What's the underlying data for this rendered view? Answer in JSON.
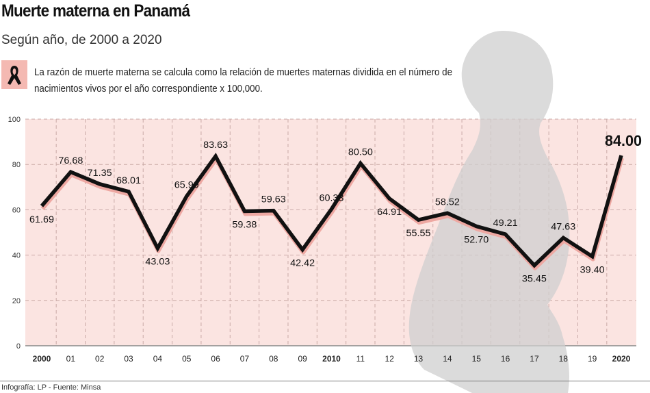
{
  "header": {
    "title": "Muerte materna en Panamá",
    "subtitle": "Según año, de 2000 a 2020",
    "note": "La razón de muerte materna se calcula como la relación de muertes maternas dividida en el número de nacimientos vivos por el año correspondiente x 100,000.",
    "note_icon": "awareness-ribbon-icon"
  },
  "footer": "Infografía: LP - Fuente: Minsa",
  "colors": {
    "plot_bg": "#fbe4e1",
    "line": "#111111",
    "shadow": "#eea8a2",
    "silhouette": "#cfcfcf"
  },
  "chart_data": {
    "type": "line",
    "categories": [
      "2000",
      "01",
      "02",
      "03",
      "04",
      "05",
      "06",
      "07",
      "08",
      "09",
      "2010",
      "11",
      "12",
      "13",
      "14",
      "15",
      "16",
      "17",
      "18",
      "19",
      "2020"
    ],
    "bold_categories": [
      "2000",
      "2010",
      "2020"
    ],
    "values": [
      61.69,
      76.68,
      71.35,
      68.01,
      43.03,
      65.99,
      83.63,
      59.38,
      59.63,
      42.42,
      60.33,
      80.5,
      64.91,
      55.55,
      58.52,
      52.7,
      49.21,
      35.45,
      47.63,
      39.4,
      84.0
    ],
    "labels": [
      "61.69",
      "76.68",
      "71.35",
      "68.01",
      "43.03",
      "65.99",
      "83.63",
      "59.38",
      "59.63",
      "42.42",
      "60.33",
      "80.50",
      "64.91",
      "55.55",
      "58.52",
      "52.70",
      "49.21",
      "35.45",
      "47.63",
      "39.40",
      "84.00"
    ],
    "label_pos": [
      "below",
      "above",
      "above",
      "above",
      "below",
      "above",
      "above",
      "below",
      "above",
      "below",
      "above",
      "above",
      "below",
      "below",
      "above",
      "below",
      "above",
      "below",
      "above",
      "below",
      "above"
    ],
    "ylim": [
      0,
      100
    ],
    "yticks": [
      "0",
      "20",
      "40",
      "60",
      "80",
      "100"
    ],
    "grid": true
  }
}
